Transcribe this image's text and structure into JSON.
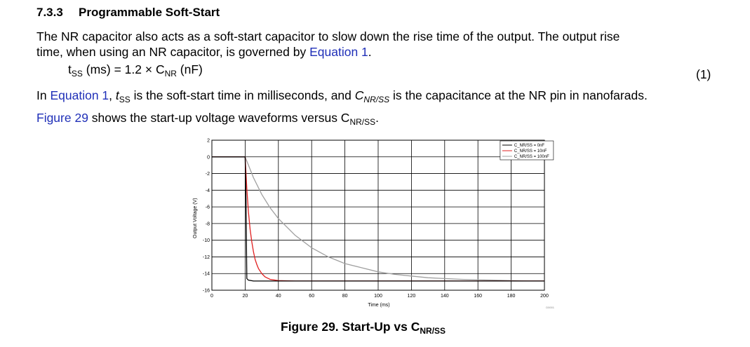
{
  "section": {
    "number": "7.3.3",
    "title": "Programmable Soft-Start"
  },
  "para1": {
    "line1": "The NR capacitor also acts as a soft-start capacitor to slow down the rise time of the output. The output rise",
    "line2_pre": "time, when using an NR capacitor, is governed by ",
    "line2_link": "Equation 1",
    "line2_post": "."
  },
  "equation": {
    "lhs_base": "t",
    "lhs_sub": "SS",
    "middle": " (ms) = 1.2 × C",
    "rhs_sub": "NR",
    "tail": " (nF)",
    "number": "(1)"
  },
  "para2": {
    "pre": "In ",
    "link": "Equation 1",
    "comma": ", ",
    "t": "t",
    "t_sub": "SS",
    "mid": " is the soft-start time in milliseconds, and ",
    "c": "C",
    "c_sub": "NR/SS",
    "post": " is the capacitance at the NR pin in nanofarads."
  },
  "para3": {
    "link": "Figure 29",
    "text": " shows the start-up voltage waveforms versus C",
    "sub": "NR/SS",
    "end": "."
  },
  "caption": {
    "text": "Figure 29.  Start-Up vs C",
    "sub": "NR/SS"
  },
  "chart_data": {
    "type": "line",
    "ylabel": "Output Voltage (V)",
    "xlabel": "Time (ms)",
    "xlim": [
      0,
      200
    ],
    "ylim": [
      -16,
      2
    ],
    "xticks": [
      0,
      20,
      40,
      60,
      80,
      100,
      120,
      140,
      160,
      180,
      200
    ],
    "yticks": [
      2,
      0,
      -2,
      -4,
      -6,
      -8,
      -10,
      -12,
      -14,
      -16
    ],
    "grid": true,
    "legend_position": "top-right",
    "figure_id": "D0001",
    "series": [
      {
        "name": "C_NR/SS = 0nF",
        "color": "#000000",
        "x": [
          0,
          20,
          20.5,
          21,
          22,
          25,
          30,
          60,
          100,
          150,
          200
        ],
        "y": [
          0,
          0,
          -5,
          -14.6,
          -14.8,
          -14.9,
          -14.9,
          -14.9,
          -14.9,
          -14.9,
          -14.9
        ]
      },
      {
        "name": "C_NR/SS = 10nF",
        "color": "#e02020",
        "x": [
          0,
          20,
          21,
          22,
          23,
          24,
          25,
          26,
          27,
          28,
          30,
          32,
          35,
          40,
          50,
          100,
          150,
          200
        ],
        "y": [
          0,
          0,
          -3.8,
          -6.6,
          -8.7,
          -10.2,
          -11.4,
          -12.3,
          -12.9,
          -13.4,
          -14.0,
          -14.4,
          -14.7,
          -14.85,
          -14.9,
          -14.9,
          -14.9,
          -14.9
        ]
      },
      {
        "name": "C_NR/SS = 100nF",
        "color": "#a0a0a0",
        "x": [
          0,
          20,
          25,
          30,
          35,
          40,
          50,
          60,
          70,
          80,
          90,
          100,
          110,
          120,
          130,
          140,
          150,
          160,
          170,
          180,
          190,
          200
        ],
        "y": [
          0,
          0,
          -2.5,
          -4.5,
          -6.1,
          -7.4,
          -9.4,
          -10.9,
          -12.0,
          -12.8,
          -13.3,
          -13.8,
          -14.1,
          -14.3,
          -14.5,
          -14.6,
          -14.7,
          -14.75,
          -14.8,
          -14.85,
          -14.9,
          -14.9
        ]
      }
    ]
  }
}
